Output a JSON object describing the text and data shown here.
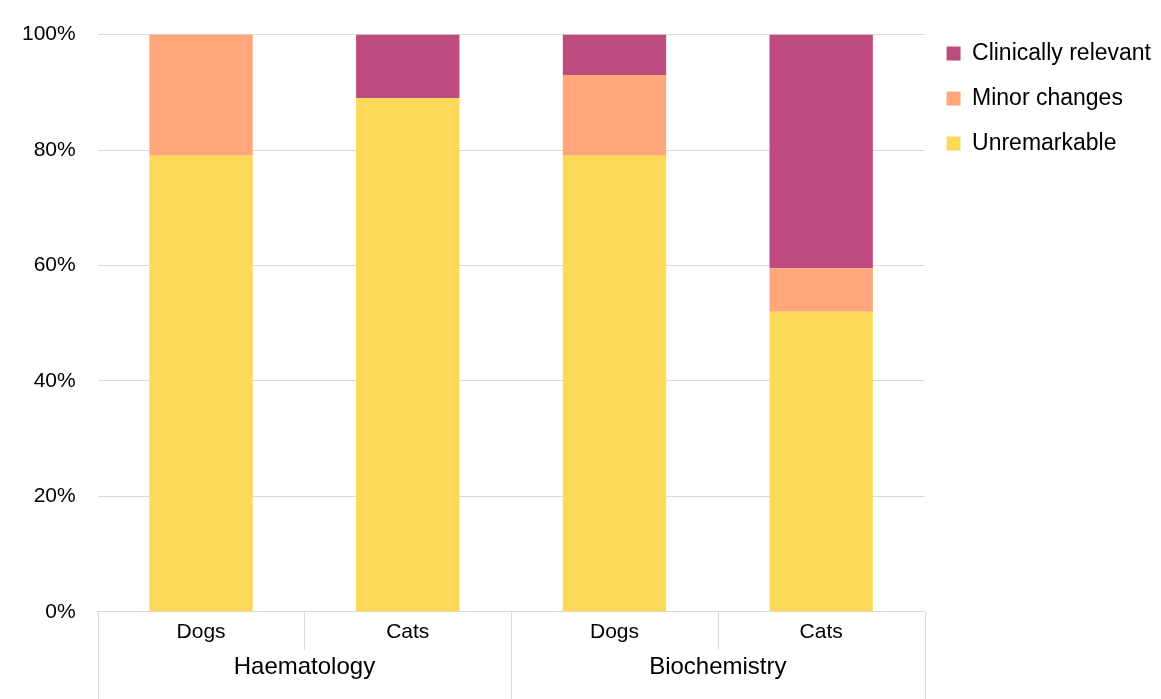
{
  "chart_data": {
    "type": "bar",
    "stacked": true,
    "categories": [
      "Dogs",
      "Cats",
      "Dogs",
      "Cats"
    ],
    "series": [
      {
        "name": "Unremarkable",
        "color": "#fdd95a",
        "values": [
          79,
          89,
          79,
          52
        ]
      },
      {
        "name": "Minor changes",
        "color": "#ffa77a",
        "values": [
          21,
          0,
          14,
          7.5
        ]
      },
      {
        "name": "Clinically relevant",
        "color": "#be4b7f",
        "values": [
          0,
          11,
          7,
          40.5
        ]
      }
    ],
    "annotations": [
      "Haematology",
      "Biochemistry"
    ],
    "ylim": [
      0,
      100
    ],
    "yticks": [
      {
        "value": 0,
        "label": "0%"
      },
      {
        "value": 20,
        "label": "20%"
      },
      {
        "value": 40,
        "label": "40%"
      },
      {
        "value": 60,
        "label": "60%"
      },
      {
        "value": 80,
        "label": "80%"
      },
      {
        "value": 100,
        "label": "100%"
      }
    ],
    "grid": "y",
    "legend": "right"
  }
}
